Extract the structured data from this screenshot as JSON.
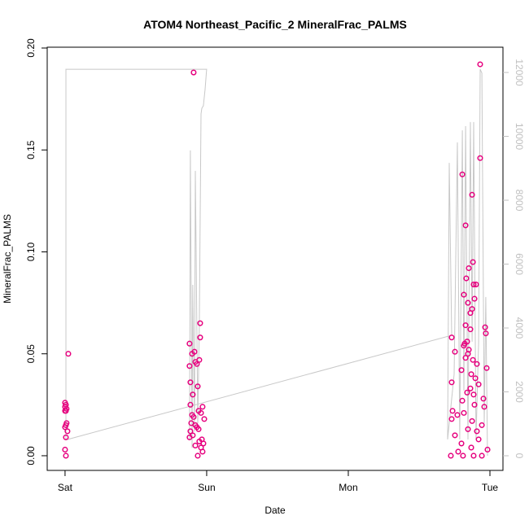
{
  "chart_data": {
    "type": "scatter",
    "title": "ATOM4 Northeast_Pacific_2 MineralFrac_PALMS",
    "xlabel": "Date",
    "ylabel": "MineralFrac_PALMS",
    "xlim": [
      -0.126,
      3.092
    ],
    "xticks": [
      {
        "value": 0,
        "label": "Sat"
      },
      {
        "value": 1,
        "label": "Sun"
      },
      {
        "value": 2,
        "label": "Mon"
      },
      {
        "value": 3,
        "label": "Tue"
      }
    ],
    "ylim": [
      -0.0072,
      0.2004
    ],
    "yticks": [
      {
        "value": 0,
        "label": "0.00"
      },
      {
        "value": 0.05,
        "label": "0.05"
      },
      {
        "value": 0.1,
        "label": "0.10"
      },
      {
        "value": 0.15,
        "label": "0.15"
      },
      {
        "value": 0.2,
        "label": "0.20"
      }
    ],
    "y2lim": [
      -459,
      12791
    ],
    "y2ticks": [
      0,
      2000,
      4000,
      6000,
      8000,
      10000,
      12000
    ],
    "y2color": "#c0c0c0",
    "series": [
      {
        "type": "scatter",
        "color": "#e6007e",
        "x": [
          0.0,
          0.006,
          0.0,
          0.011,
          0.006,
          0.0,
          0.011,
          0.006,
          0.0,
          0.017,
          0.006,
          0.0,
          0.006,
          0.023,
          0.908,
          0.954,
          0.954,
          0.879,
          0.914,
          0.897,
          0.948,
          0.92,
          0.931,
          0.879,
          0.885,
          0.937,
          0.902,
          0.885,
          0.971,
          0.943,
          0.96,
          0.897,
          0.908,
          0.983,
          0.891,
          0.92,
          0.931,
          0.943,
          0.885,
          0.902,
          0.879,
          0.966,
          0.948,
          0.977,
          0.92,
          0.96,
          0.971,
          0.937,
          2.931,
          2.931,
          2.805,
          2.874,
          2.828,
          2.88,
          2.851,
          2.833,
          2.885,
          2.902,
          2.816,
          2.891,
          2.845,
          2.874,
          2.862,
          2.828,
          2.966,
          2.862,
          2.971,
          2.73,
          2.839,
          2.822,
          2.816,
          2.851,
          2.753,
          2.845,
          2.828,
          2.88,
          2.908,
          2.977,
          2.799,
          2.868,
          2.897,
          2.73,
          2.92,
          2.862,
          2.839,
          2.885,
          2.954,
          2.805,
          2.891,
          2.96,
          2.736,
          2.816,
          2.77,
          2.73,
          2.874,
          2.943,
          2.845,
          2.908,
          2.753,
          2.92,
          2.799,
          2.868,
          2.983,
          2.776,
          2.724,
          2.81,
          2.885,
          2.943
        ],
        "values": [
          0.026,
          0.025,
          0.024,
          0.023,
          0.022,
          0.022,
          0.016,
          0.015,
          0.014,
          0.012,
          0.009,
          0.003,
          0.0,
          0.05,
          0.188,
          0.065,
          0.058,
          0.055,
          0.051,
          0.05,
          0.047,
          0.046,
          0.045,
          0.044,
          0.036,
          0.034,
          0.03,
          0.025,
          0.024,
          0.022,
          0.021,
          0.02,
          0.019,
          0.018,
          0.016,
          0.015,
          0.014,
          0.013,
          0.012,
          0.01,
          0.009,
          0.008,
          0.007,
          0.006,
          0.005,
          0.004,
          0.002,
          0.0,
          0.192,
          0.146,
          0.138,
          0.128,
          0.113,
          0.095,
          0.092,
          0.087,
          0.084,
          0.084,
          0.079,
          0.077,
          0.075,
          0.072,
          0.07,
          0.064,
          0.063,
          0.062,
          0.06,
          0.058,
          0.056,
          0.055,
          0.054,
          0.052,
          0.051,
          0.05,
          0.048,
          0.047,
          0.045,
          0.043,
          0.042,
          0.04,
          0.038,
          0.036,
          0.035,
          0.033,
          0.031,
          0.03,
          0.028,
          0.027,
          0.025,
          0.024,
          0.022,
          0.021,
          0.02,
          0.018,
          0.017,
          0.015,
          0.013,
          0.012,
          0.01,
          0.008,
          0.006,
          0.004,
          0.003,
          0.002,
          0.0,
          0.0,
          0.0,
          0.0
        ]
      },
      {
        "type": "line",
        "axis": "y2",
        "color": "#c8c8c8",
        "x": [
          0.006,
          0.006,
          1.0,
          0.989,
          0.977,
          0.966,
          0.96,
          0.948,
          0.937,
          0.925,
          0.92,
          0.914,
          0.902,
          0.897,
          0.885,
          0.879,
          null,
          0.017,
          2.73,
          2.713,
          2.701,
          2.747,
          2.77,
          2.787,
          2.805,
          2.816,
          2.828,
          2.845,
          2.862,
          2.874,
          2.885,
          2.902,
          2.92,
          2.931,
          2.943,
          2.96,
          2.971,
          2.983
        ],
        "values": [
          510,
          12100,
          12100,
          11470,
          10960,
          10880,
          10700,
          4080,
          1020,
          6620,
          8920,
          760,
          5350,
          250,
          9560,
          510,
          null,
          510,
          3770,
          9170,
          510,
          2550,
          9810,
          510,
          10190,
          2040,
          10320,
          510,
          10450,
          3570,
          10450,
          510,
          3570,
          12100,
          11980,
          1020,
          4970,
          0
        ]
      }
    ]
  }
}
